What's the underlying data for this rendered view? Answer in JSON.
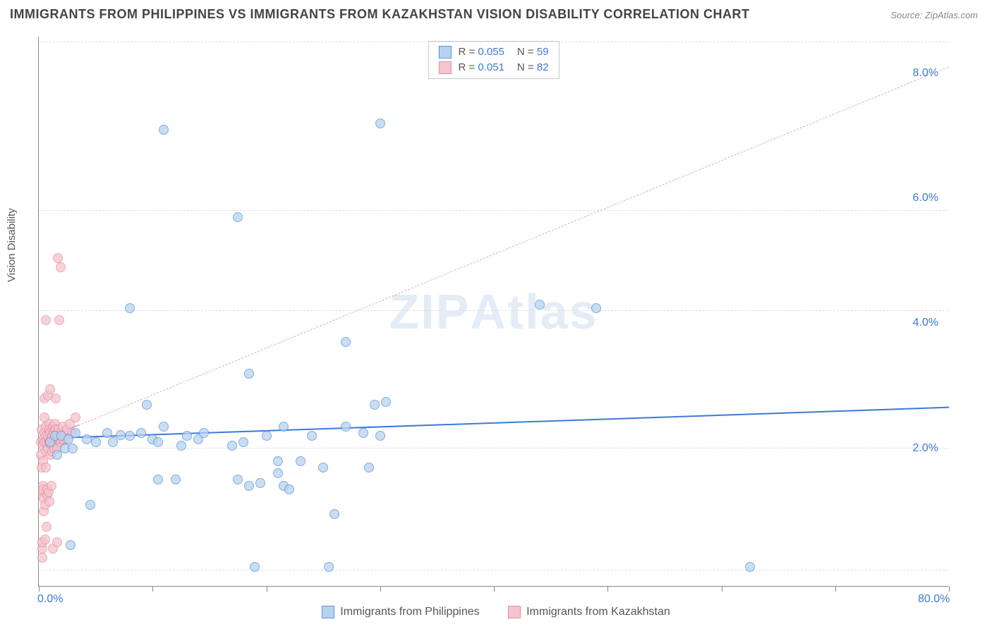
{
  "title": "IMMIGRANTS FROM PHILIPPINES VS IMMIGRANTS FROM KAZAKHSTAN VISION DISABILITY CORRELATION CHART",
  "source": "Source: ZipAtlas.com",
  "y_axis_label": "Vision Disability",
  "watermark": {
    "bold": "ZIP",
    "rest": "Atlas"
  },
  "chart": {
    "type": "scatter",
    "xlim": [
      0,
      80
    ],
    "ylim": [
      0,
      8.8
    ],
    "x_ticks": [
      0,
      10,
      20,
      30,
      40,
      50,
      60,
      70,
      80
    ],
    "x_tick_labels": {
      "0": "0.0%",
      "80": "80.0%"
    },
    "y_ticks": [
      2.0,
      4.0,
      6.0,
      8.0
    ],
    "y_tick_labels": [
      "2.0%",
      "4.0%",
      "6.0%",
      "8.0%"
    ],
    "grid_h_at": [
      0.25,
      2.2,
      4.4,
      6.0,
      8.7
    ],
    "grid_color": "#e0e0e0",
    "background": "#ffffff",
    "axis_color": "#888888"
  },
  "series": {
    "blue": {
      "label": "Immigrants from Philippines",
      "r": "0.055",
      "n": "59",
      "fill": "#b7d2f0",
      "stroke": "#5a94d6",
      "trend": {
        "x1": 0,
        "y1": 2.35,
        "x2": 80,
        "y2": 2.85,
        "color": "#3b7bd6",
        "width": 2.2,
        "dash": "none"
      },
      "points": [
        [
          1.0,
          2.3
        ],
        [
          1.4,
          2.4
        ],
        [
          1.6,
          2.1
        ],
        [
          2.0,
          2.4
        ],
        [
          2.3,
          2.2
        ],
        [
          2.6,
          2.35
        ],
        [
          3.0,
          2.2
        ],
        [
          3.2,
          2.45
        ],
        [
          4.2,
          2.35
        ],
        [
          5.0,
          2.3
        ],
        [
          6.0,
          2.45
        ],
        [
          6.5,
          2.3
        ],
        [
          7.2,
          2.42
        ],
        [
          8.0,
          2.4
        ],
        [
          8.0,
          4.45
        ],
        [
          9.0,
          2.45
        ],
        [
          9.5,
          2.9
        ],
        [
          10.0,
          2.35
        ],
        [
          10.5,
          2.3
        ],
        [
          10.5,
          1.7
        ],
        [
          11.0,
          2.55
        ],
        [
          11.0,
          7.3
        ],
        [
          12.0,
          1.7
        ],
        [
          12.5,
          2.25
        ],
        [
          13.0,
          2.4
        ],
        [
          14.0,
          2.35
        ],
        [
          14.5,
          2.45
        ],
        [
          17.0,
          2.25
        ],
        [
          17.5,
          1.7
        ],
        [
          17.5,
          5.9
        ],
        [
          18.0,
          2.3
        ],
        [
          18.5,
          3.4
        ],
        [
          18.5,
          1.6
        ],
        [
          19.0,
          0.3
        ],
        [
          19.5,
          1.65
        ],
        [
          20.0,
          2.4
        ],
        [
          21.0,
          1.8
        ],
        [
          21.0,
          2.0
        ],
        [
          21.5,
          2.55
        ],
        [
          21.5,
          1.6
        ],
        [
          22.0,
          1.55
        ],
        [
          23.0,
          2.0
        ],
        [
          24.0,
          2.4
        ],
        [
          25.0,
          1.9
        ],
        [
          25.5,
          0.3
        ],
        [
          26.0,
          1.15
        ],
        [
          27.0,
          3.9
        ],
        [
          27.0,
          2.55
        ],
        [
          28.5,
          2.45
        ],
        [
          29.0,
          1.9
        ],
        [
          29.5,
          2.9
        ],
        [
          30.0,
          2.4
        ],
        [
          30.0,
          7.4
        ],
        [
          30.5,
          2.95
        ],
        [
          44.0,
          4.5
        ],
        [
          49.0,
          4.45
        ],
        [
          62.5,
          0.3
        ],
        [
          2.8,
          0.65
        ],
        [
          4.5,
          1.3
        ]
      ]
    },
    "pink": {
      "label": "Immigrants from Kazakhstan",
      "r": "0.051",
      "n": "82",
      "fill": "#f6c4cd",
      "stroke": "#e390a2",
      "trend": {
        "x1": 0,
        "y1": 2.3,
        "x2": 80,
        "y2": 8.3,
        "color": "#e9a8b6",
        "width": 1.6,
        "dash": "6,6"
      },
      "trend_solid_end_x": 3.5,
      "points": [
        [
          0.2,
          2.3
        ],
        [
          0.2,
          2.1
        ],
        [
          0.25,
          1.9
        ],
        [
          0.25,
          2.5
        ],
        [
          0.3,
          0.6
        ],
        [
          0.3,
          0.45
        ],
        [
          0.3,
          0.7
        ],
        [
          0.35,
          1.5
        ],
        [
          0.35,
          1.6
        ],
        [
          0.4,
          1.55
        ],
        [
          0.4,
          2.0
        ],
        [
          0.4,
          2.35
        ],
        [
          0.4,
          2.25
        ],
        [
          0.45,
          1.2
        ],
        [
          0.45,
          1.4
        ],
        [
          0.5,
          2.3
        ],
        [
          0.5,
          2.45
        ],
        [
          0.5,
          3.0
        ],
        [
          0.5,
          2.7
        ],
        [
          0.55,
          0.75
        ],
        [
          0.55,
          1.3
        ],
        [
          0.6,
          2.4
        ],
        [
          0.6,
          2.15
        ],
        [
          0.6,
          1.9
        ],
        [
          0.6,
          4.25
        ],
        [
          0.65,
          2.55
        ],
        [
          0.7,
          2.3
        ],
        [
          0.7,
          0.95
        ],
        [
          0.75,
          1.45
        ],
        [
          0.75,
          1.55
        ],
        [
          0.8,
          2.2
        ],
        [
          0.8,
          2.4
        ],
        [
          0.8,
          3.05
        ],
        [
          0.85,
          1.5
        ],
        [
          0.85,
          2.35
        ],
        [
          0.9,
          2.6
        ],
        [
          0.9,
          2.3
        ],
        [
          0.95,
          2.5
        ],
        [
          0.95,
          1.35
        ],
        [
          1.0,
          2.3
        ],
        [
          1.0,
          2.45
        ],
        [
          1.0,
          3.15
        ],
        [
          1.05,
          2.1
        ],
        [
          1.1,
          2.35
        ],
        [
          1.1,
          1.6
        ],
        [
          1.15,
          2.5
        ],
        [
          1.15,
          2.25
        ],
        [
          1.2,
          2.4
        ],
        [
          1.2,
          2.15
        ],
        [
          1.25,
          2.55
        ],
        [
          1.25,
          0.6
        ],
        [
          1.3,
          2.3
        ],
        [
          1.3,
          2.45
        ],
        [
          1.35,
          2.2
        ],
        [
          1.4,
          2.5
        ],
        [
          1.4,
          2.35
        ],
        [
          1.45,
          2.6
        ],
        [
          1.5,
          2.3
        ],
        [
          1.5,
          2.5
        ],
        [
          1.5,
          3.0
        ],
        [
          1.55,
          2.35
        ],
        [
          1.6,
          2.45
        ],
        [
          1.6,
          2.2
        ],
        [
          1.6,
          0.7
        ],
        [
          1.65,
          5.25
        ],
        [
          1.7,
          2.35
        ],
        [
          1.75,
          2.5
        ],
        [
          1.8,
          4.25
        ],
        [
          1.8,
          2.35
        ],
        [
          1.85,
          2.4
        ],
        [
          1.9,
          5.1
        ],
        [
          1.9,
          2.3
        ],
        [
          1.95,
          2.45
        ],
        [
          2.0,
          2.35
        ],
        [
          2.1,
          2.55
        ],
        [
          2.2,
          2.35
        ],
        [
          2.3,
          2.4
        ],
        [
          2.4,
          2.35
        ],
        [
          2.5,
          2.5
        ],
        [
          2.7,
          2.6
        ],
        [
          3.0,
          2.45
        ],
        [
          3.2,
          2.7
        ]
      ]
    }
  },
  "legend_bottom": [
    {
      "key": "blue",
      "label": "Immigrants from Philippines"
    },
    {
      "key": "pink",
      "label": "Immigrants from Kazakhstan"
    }
  ]
}
